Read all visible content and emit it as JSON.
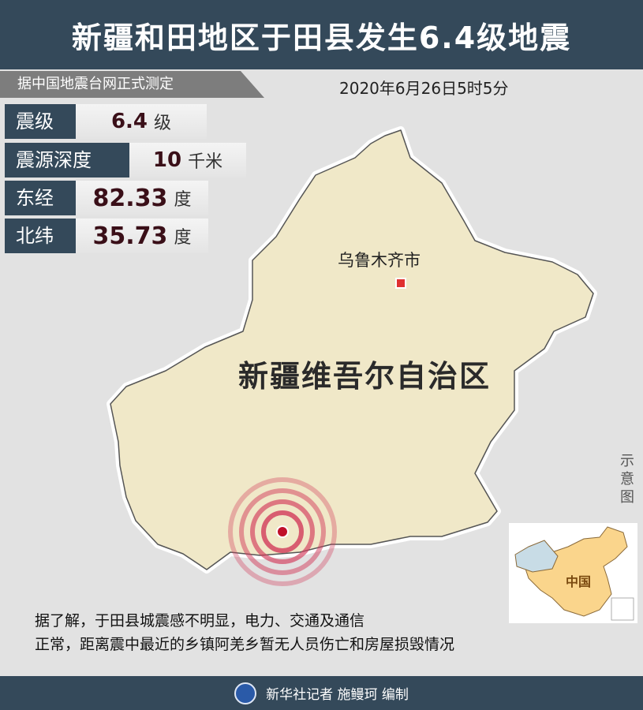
{
  "header": {
    "title": "新疆和田地区于田县发生6.4级地震"
  },
  "source": "据中国地震台网正式测定",
  "time": "2020年6月26日5时5分",
  "stats": [
    {
      "label": "震级",
      "value": "6.4",
      "unit": "级"
    },
    {
      "label": "震源深度",
      "value": "10",
      "unit": "千米"
    },
    {
      "label": "东经",
      "value": "82.33",
      "unit": "度"
    },
    {
      "label": "北纬",
      "value": "35.73",
      "unit": "度"
    }
  ],
  "map": {
    "city": "乌鲁木齐市",
    "region": "新疆维吾尔自治区",
    "schematic": "示意图",
    "inset_label": "中国",
    "colors": {
      "land": "#f0e8c8",
      "epicenter": "#d0102a",
      "inset_xinjiang": "#c8dce6",
      "inset_china": "#fad58c"
    }
  },
  "note": [
    "据了解，于田县城震感不明显，电力、交通及通信",
    "正常，距离震中最近的乡镇阿羌乡暂无人员伤亡和房屋损毁情况"
  ],
  "footer": {
    "credit": "新华社记者 施鳗珂 编制"
  }
}
